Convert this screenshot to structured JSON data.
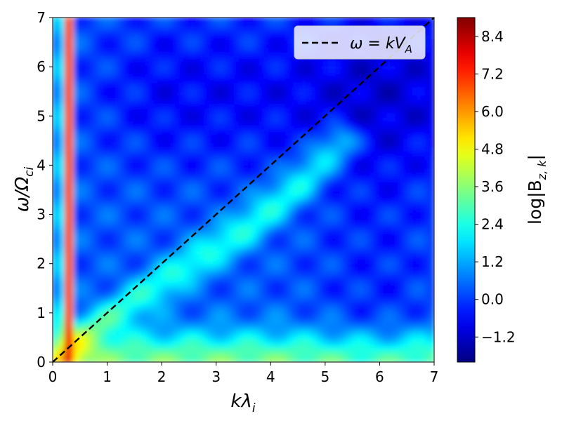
{
  "chart_data": {
    "type": "heatmap",
    "title": "",
    "xlabel": "kλ",
    "xlabel_sub": "i",
    "ylabel": "ω/Ω",
    "ylabel_sub": "ci",
    "xlim": [
      0,
      7
    ],
    "ylim": [
      0,
      7
    ],
    "x_ticks": [
      0,
      1,
      2,
      3,
      4,
      5,
      6,
      7
    ],
    "y_ticks": [
      0,
      1,
      2,
      3,
      4,
      5,
      6,
      7
    ],
    "x_tick_labels": [
      "0",
      "1",
      "2",
      "3",
      "4",
      "5",
      "6",
      "7"
    ],
    "y_tick_labels": [
      "0",
      "1",
      "2",
      "3",
      "4",
      "5",
      "6",
      "7"
    ],
    "colormap": "jet",
    "colorbar": {
      "label_prefix": "log|B",
      "label_sub": "z, k",
      "label_suffix": "|",
      "range": [
        -2.0,
        9.0
      ],
      "ticks": [
        -1.2,
        0.0,
        1.2,
        2.4,
        3.6,
        4.8,
        6.0,
        7.2,
        8.4
      ],
      "tick_labels": [
        "−1.2",
        "0.0",
        "1.2",
        "2.4",
        "3.6",
        "4.8",
        "6.0",
        "7.2",
        "8.4"
      ]
    },
    "features": [
      {
        "name": "low-k column",
        "k": 0.3,
        "omega_range": [
          0,
          7
        ],
        "level": 8.4
      },
      {
        "name": "low-frequency band",
        "k_range": [
          0,
          7
        ],
        "omega_range": [
          0,
          0.6
        ],
        "level": 3.6
      },
      {
        "name": "dispersion branch",
        "points": [
          [
            0.5,
            0.5
          ],
          [
            2,
            1.6
          ],
          [
            3.5,
            2.7
          ],
          [
            4.5,
            3.6
          ],
          [
            5.3,
            4.5
          ]
        ],
        "level": 2.4
      },
      {
        "name": "background",
        "level": 0.3
      }
    ],
    "reference_line": {
      "label": "ω = kV",
      "label_sub": "A",
      "x": [
        0,
        7
      ],
      "y": [
        0,
        7
      ],
      "style": "dashed",
      "color": "#000000"
    },
    "legend_position": "top-right"
  }
}
